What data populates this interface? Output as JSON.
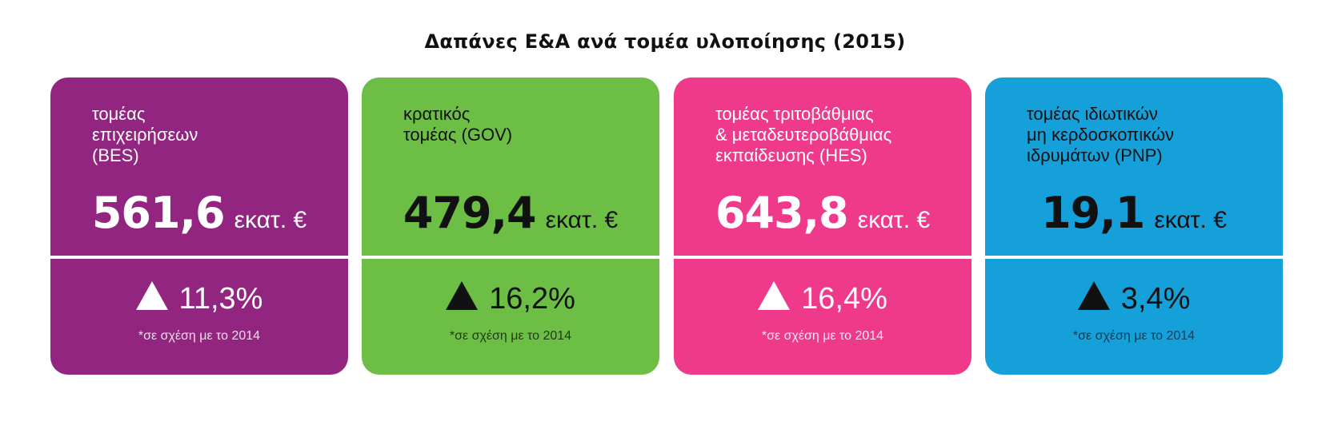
{
  "chart_data": {
    "type": "table",
    "title": "Δαπάνες Ε&Α ανά τομέα υλοποίησης (2015)",
    "cards": [
      {
        "label": "τομέας\nεπιχειρήσεων\n(BES)",
        "value": "561,6",
        "unit": "εκατ. €",
        "change": "11,3%",
        "note": "*σε σχέση με το 2014",
        "color": "#92257f"
      },
      {
        "label": "κρατικός\nτομέας (GOV)",
        "value": "479,4",
        "unit": "εκατ. €",
        "change": "16,2%",
        "note": "*σε σχέση με το 2014",
        "color": "#6cbe45"
      },
      {
        "label": "τομέας τριτοβάθμιας\n& μεταδευτεροβάθμιας\nεκπαίδευσης (HES)",
        "value": "643,8",
        "unit": "εκατ. €",
        "change": "16,4%",
        "note": "*σε σχέση με το 2014",
        "color": "#ef3a8b"
      },
      {
        "label": "τομέας ιδιωτικών\nμη κερδοσκοπικών\nιδρυμάτων (PNP)",
        "value": "19,1",
        "unit": "εκατ. €",
        "change": "3,4%",
        "note": "*σε σχέση με το 2014",
        "color": "#16a0da"
      }
    ]
  }
}
